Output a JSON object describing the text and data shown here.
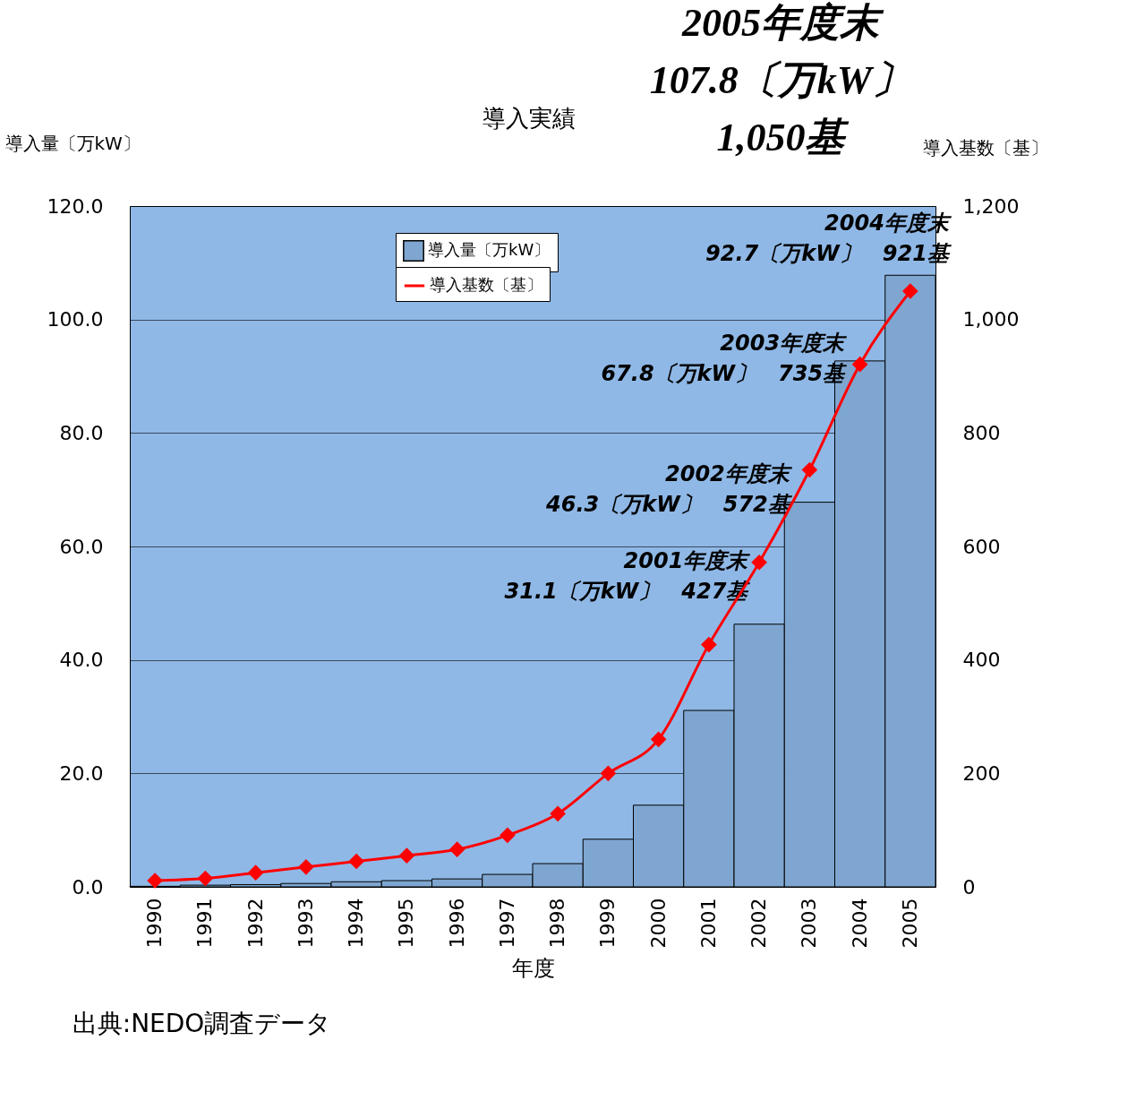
{
  "chart_data": {
    "type": "bar",
    "title": "導入実績",
    "xlabel": "年度",
    "ylabel": "導入量〔万kW〕",
    "y2label": "導入基数〔基〕",
    "categories": [
      "1990",
      "1991",
      "1992",
      "1993",
      "1994",
      "1995",
      "1996",
      "1997",
      "1998",
      "1999",
      "2000",
      "2001",
      "2002",
      "2003",
      "2004",
      "2005"
    ],
    "series": [
      {
        "name": "導入量〔万kW〕",
        "type": "bar",
        "color": "#7fa6d0",
        "values": [
          0.1,
          0.3,
          0.4,
          0.6,
          0.9,
          1.1,
          1.4,
          2.2,
          4.1,
          8.4,
          14.4,
          31.1,
          46.3,
          67.8,
          92.7,
          107.8
        ]
      },
      {
        "name": "導入基数〔基〕",
        "type": "line",
        "axis": "y2",
        "color": "#ff0000",
        "marker": "diamond",
        "values": [
          11,
          15,
          25,
          35,
          45,
          55,
          66,
          91,
          129,
          200,
          260,
          427,
          572,
          735,
          921,
          1050
        ]
      }
    ],
    "ylim": [
      0,
      120
    ],
    "yticks": [
      {
        "value": 0,
        "label": "0.0"
      },
      {
        "value": 20,
        "label": "20.0"
      },
      {
        "value": 40,
        "label": "40.0"
      },
      {
        "value": 60,
        "label": "60.0"
      },
      {
        "value": 80,
        "label": "80.0"
      },
      {
        "value": 100,
        "label": "100.0"
      },
      {
        "value": 120,
        "label": "120.0"
      }
    ],
    "y2lim": [
      0,
      1200
    ],
    "y2ticks": [
      0,
      200,
      400,
      600,
      800,
      {
        "value": 1000,
        "label": "1,000"
      },
      {
        "value": 1200,
        "label": "1,200"
      }
    ],
    "grid": "y",
    "legend": "top",
    "annotations": [
      "2001年度末\n31.1〔万kW〕　427基",
      "2002年度末\n46.3〔万kW〕　572基",
      "2003年度末\n67.8〔万kW〕　735基",
      "2004年度末\n92.7〔万kW〕　921基",
      "2005年度末\n107.8〔万kW〕\n1,050基",
      "出典:NEDO調査データ"
    ]
  }
}
